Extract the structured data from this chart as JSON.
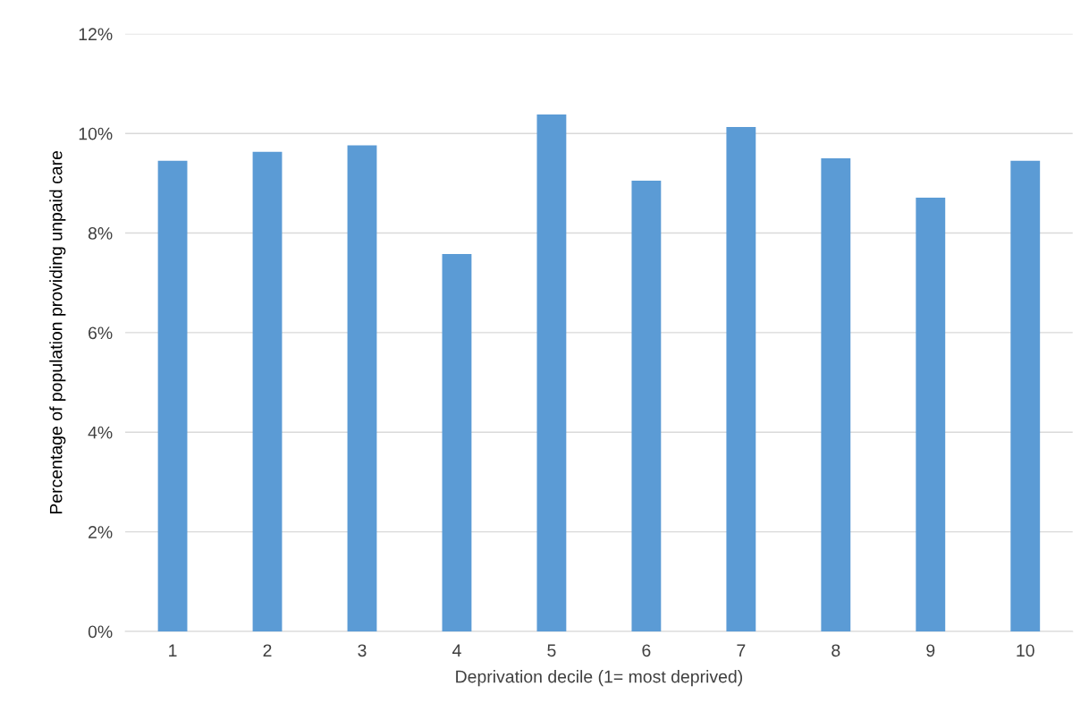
{
  "chart_data": {
    "type": "bar",
    "xlabel": "Deprivation decile (1= most deprived)",
    "ylabel": "Percentage of population providing unpaid care",
    "categories": [
      "1",
      "2",
      "3",
      "4",
      "5",
      "6",
      "7",
      "8",
      "9",
      "10"
    ],
    "values": [
      9.45,
      9.63,
      9.76,
      7.58,
      10.38,
      9.05,
      10.13,
      9.5,
      8.71,
      9.45
    ],
    "color": "#5b9bd5",
    "ylim": [
      0,
      12
    ],
    "yticks": [
      {
        "value": 0,
        "label": "0%"
      },
      {
        "value": 2,
        "label": "2%"
      },
      {
        "value": 4,
        "label": "4%"
      },
      {
        "value": 6,
        "label": "6%"
      },
      {
        "value": 8,
        "label": "8%"
      },
      {
        "value": 10,
        "label": "10%"
      },
      {
        "value": 12,
        "label": "12%"
      }
    ],
    "grid": "y",
    "legend": false
  }
}
